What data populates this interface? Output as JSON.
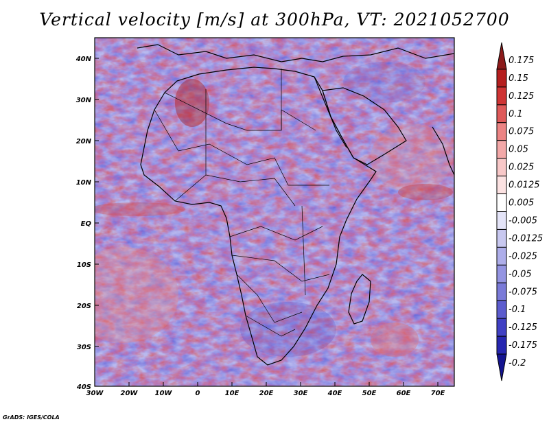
{
  "title": "Vertical velocity [m/s] at 300hPa, VT: 2021052700",
  "credit": "GrADS: IGES/COLA",
  "lon_ticks": [
    "30W",
    "20W",
    "10W",
    "0",
    "10E",
    "20E",
    "30E",
    "40E",
    "50E",
    "60E",
    "70E"
  ],
  "lat_ticks": [
    "40N",
    "30N",
    "20N",
    "10N",
    "EQ",
    "10S",
    "20S",
    "30S",
    "40S"
  ],
  "colorbar": {
    "labels": [
      "0.175",
      "0.15",
      "0.125",
      "0.1",
      "0.075",
      "0.05",
      "0.025",
      "0.0125",
      "0.005",
      "-0.005",
      "-0.0125",
      "-0.025",
      "-0.05",
      "-0.075",
      "-0.1",
      "-0.125",
      "-0.175",
      "-0.2"
    ],
    "colors": [
      "#8b1a1a",
      "#b51f1f",
      "#cf3434",
      "#df5a5a",
      "#ec8484",
      "#f3a8a8",
      "#f8c8c8",
      "#fce2e2",
      "#ffffff",
      "#e4e4f8",
      "#c8c8f0",
      "#aeaeea",
      "#9494e2",
      "#7a7ad8",
      "#5c5cce",
      "#4040c4",
      "#2626b0",
      "#141490"
    ]
  },
  "map_colors": {
    "land_border": "#000000",
    "ascent": "#e06060",
    "descent": "#6060d8"
  }
}
